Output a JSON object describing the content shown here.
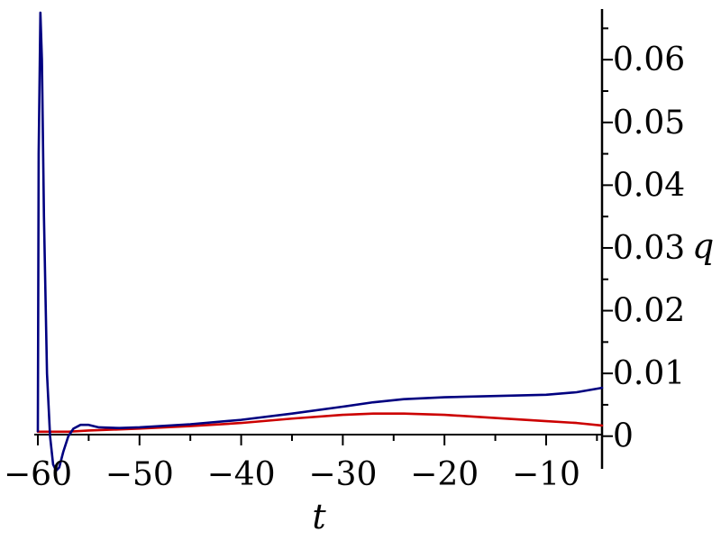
{
  "chart_data": {
    "type": "line",
    "title": "",
    "xlabel": "t",
    "ylabel": "q",
    "xlim": [
      -60,
      -4.5
    ],
    "ylim": [
      -0.0055,
      0.0675
    ],
    "x_ticks": [
      {
        "value": -60,
        "label": "−60"
      },
      {
        "value": -50,
        "label": "−50"
      },
      {
        "value": -40,
        "label": "−40"
      },
      {
        "value": -30,
        "label": "−30"
      },
      {
        "value": -20,
        "label": "−20"
      },
      {
        "value": -10,
        "label": "−10"
      }
    ],
    "y_ticks": [
      {
        "value": 0,
        "label": "0"
      },
      {
        "value": 0.01,
        "label": "0.01"
      },
      {
        "value": 0.02,
        "label": "0.02"
      },
      {
        "value": 0.03,
        "label": "0.03"
      },
      {
        "value": 0.04,
        "label": "0.04"
      },
      {
        "value": 0.05,
        "label": "0.05"
      },
      {
        "value": 0.06,
        "label": "0.06"
      }
    ],
    "grid": false,
    "y_axis_position": "right",
    "series": [
      {
        "color": "#000080",
        "points": [
          [
            -60.0,
            0.0008
          ],
          [
            -59.92,
            0.045
          ],
          [
            -59.75,
            0.0675
          ],
          [
            -59.6,
            0.06
          ],
          [
            -59.4,
            0.035
          ],
          [
            -59.1,
            0.01
          ],
          [
            -58.8,
            0.0
          ],
          [
            -58.5,
            -0.0045
          ],
          [
            -58.2,
            -0.0055
          ],
          [
            -57.9,
            -0.005
          ],
          [
            -57.5,
            -0.0025
          ],
          [
            -57.0,
            0.0
          ],
          [
            -56.5,
            0.0012
          ],
          [
            -55.8,
            0.0018
          ],
          [
            -55.0,
            0.0018
          ],
          [
            -54.0,
            0.0014
          ],
          [
            -52.0,
            0.0013
          ],
          [
            -50.0,
            0.0014
          ],
          [
            -45.0,
            0.0019
          ],
          [
            -40.0,
            0.0026
          ],
          [
            -35.0,
            0.0036
          ],
          [
            -30.0,
            0.0047
          ],
          [
            -27.0,
            0.0054
          ],
          [
            -24.0,
            0.0059
          ],
          [
            -20.0,
            0.0062
          ],
          [
            -15.0,
            0.0064
          ],
          [
            -10.0,
            0.0066
          ],
          [
            -7.0,
            0.007
          ],
          [
            -4.5,
            0.0077
          ]
        ]
      },
      {
        "color": "#cc0000",
        "points": [
          [
            -60.0,
            0.0007
          ],
          [
            -57.0,
            0.0007
          ],
          [
            -55.0,
            0.0009
          ],
          [
            -50.0,
            0.0012
          ],
          [
            -45.0,
            0.0016
          ],
          [
            -40.0,
            0.0021
          ],
          [
            -35.0,
            0.0028
          ],
          [
            -30.0,
            0.0034
          ],
          [
            -27.0,
            0.0036
          ],
          [
            -24.0,
            0.0036
          ],
          [
            -20.0,
            0.0034
          ],
          [
            -15.0,
            0.0029
          ],
          [
            -10.0,
            0.0024
          ],
          [
            -7.0,
            0.0021
          ],
          [
            -4.5,
            0.0017
          ]
        ]
      }
    ]
  }
}
